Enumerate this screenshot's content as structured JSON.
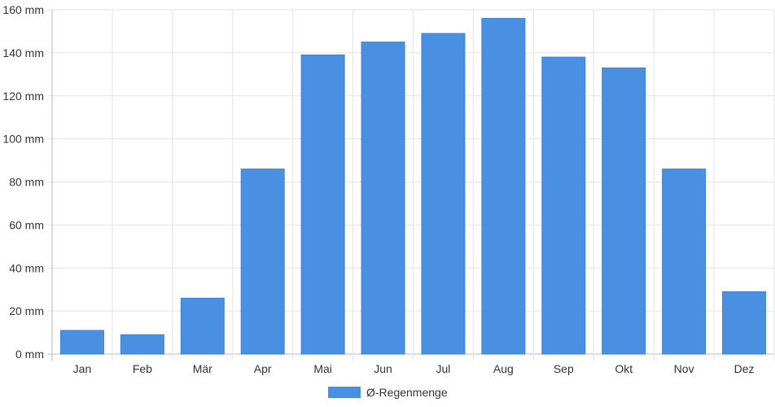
{
  "chart_data": {
    "type": "bar",
    "categories": [
      "Jan",
      "Feb",
      "Mär",
      "Apr",
      "Mai",
      "Jun",
      "Jul",
      "Aug",
      "Sep",
      "Okt",
      "Nov",
      "Dez"
    ],
    "series": [
      {
        "name": "Ø-Regenmenge",
        "values": [
          11,
          9,
          26,
          86,
          139,
          145,
          149,
          156,
          138,
          133,
          86,
          29
        ],
        "color": "#4a90e2"
      }
    ],
    "y_ticks": [
      "0 mm",
      "20 mm",
      "40 mm",
      "60 mm",
      "80 mm",
      "100 mm",
      "120 mm",
      "140 mm",
      "160 mm"
    ],
    "ylim": [
      0,
      160
    ],
    "grid": true,
    "legend_position": "bottom"
  }
}
